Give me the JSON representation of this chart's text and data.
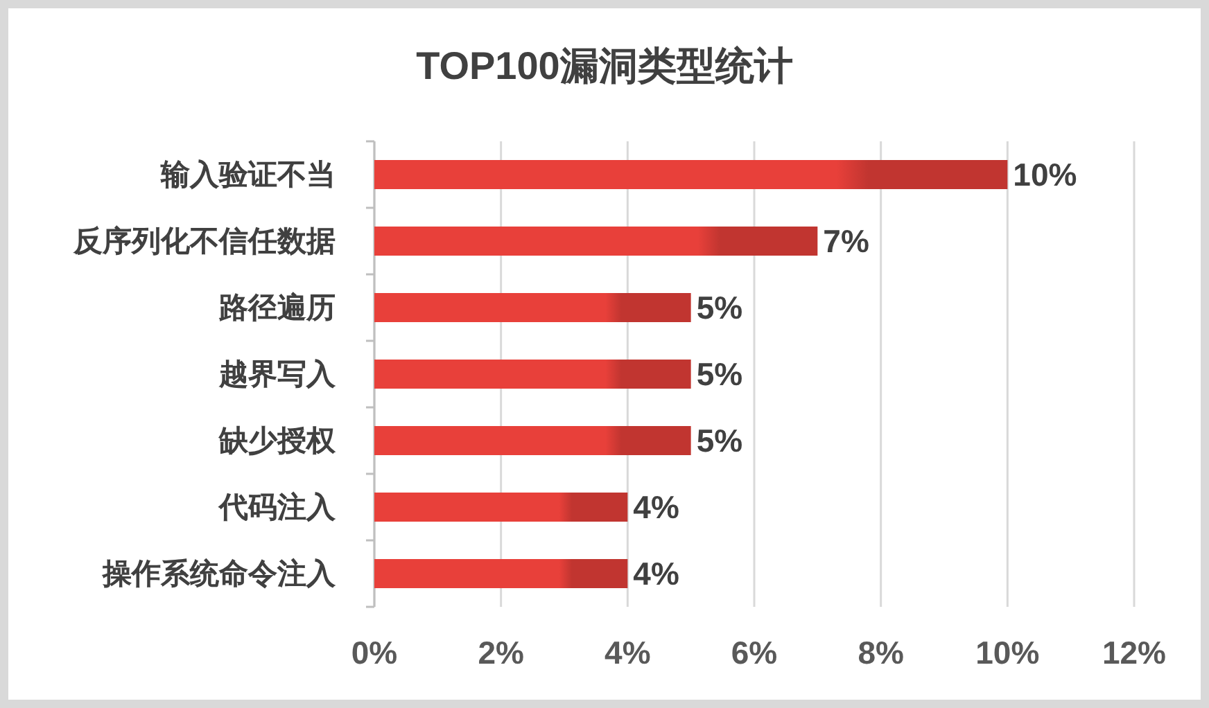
{
  "chart_data": {
    "type": "bar",
    "title": "TOP100漏洞类型统计",
    "orientation": "horizontal",
    "categories": [
      "输入验证不当",
      "反序列化不信任数据",
      "路径遍历",
      "越界写入",
      "缺少授权",
      "代码注入",
      "操作系统命令注入"
    ],
    "values": [
      10,
      7,
      5,
      5,
      5,
      4,
      4
    ],
    "value_labels": [
      "10%",
      "7%",
      "5%",
      "5%",
      "5%",
      "4%",
      "4%"
    ],
    "color": "#e8403a",
    "xlim": [
      0,
      12
    ],
    "xticks": [
      {
        "value": 0,
        "label": "0%"
      },
      {
        "value": 2,
        "label": "2%"
      },
      {
        "value": 4,
        "label": "4%"
      },
      {
        "value": 6,
        "label": "6%"
      },
      {
        "value": 8,
        "label": "8%"
      },
      {
        "value": 10,
        "label": "10%"
      },
      {
        "value": 12,
        "label": "12%"
      }
    ],
    "grid": "x"
  }
}
